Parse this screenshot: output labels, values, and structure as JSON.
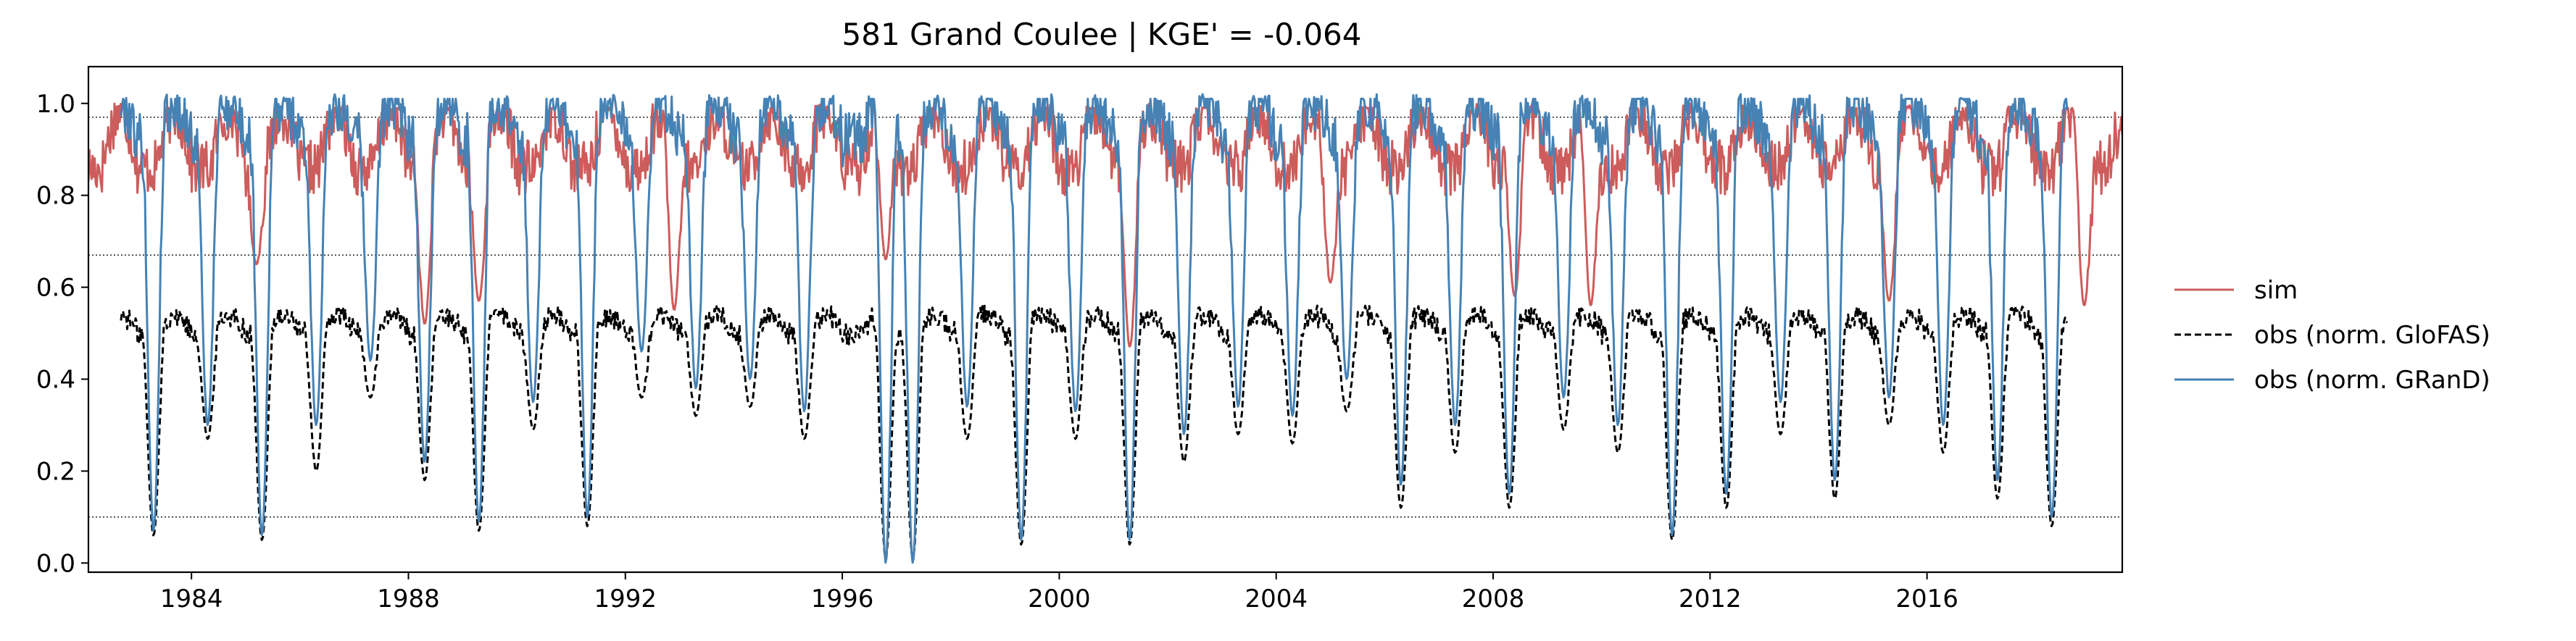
{
  "chart_data": {
    "type": "line",
    "title": "581  Grand Coulee | KGE' = -0.064",
    "xlabel": "",
    "ylabel": "",
    "xlim": [
      1982.1,
      2019.6
    ],
    "ylim": [
      -0.02,
      1.08
    ],
    "x_ticks": [
      1984,
      1988,
      1992,
      1996,
      2000,
      2004,
      2008,
      2012,
      2016
    ],
    "y_ticks": [
      0.0,
      0.2,
      0.4,
      0.6,
      0.8,
      1.0
    ],
    "y_tick_labels": [
      "0.0",
      "0.2",
      "0.4",
      "0.6",
      "0.8",
      "1.0"
    ],
    "reference_lines_y": [
      0.1,
      0.67,
      0.97
    ],
    "grid": false,
    "legend_position": "right, outside plot",
    "series": [
      {
        "name": "sim",
        "color": "#cd5c5c",
        "style": "solid",
        "x_start": 1982.1,
        "x_end": 2019.6,
        "baseline": 0.86,
        "annual_peak": 0.98,
        "drawdown_troughs": [
          {
            "year": 1985.2,
            "y": 0.65
          },
          {
            "year": 1988.3,
            "y": 0.52
          },
          {
            "year": 1989.3,
            "y": 0.57
          },
          {
            "year": 1992.9,
            "y": 0.55
          },
          {
            "year": 1996.8,
            "y": 0.66
          },
          {
            "year": 2001.3,
            "y": 0.47
          },
          {
            "year": 2005.0,
            "y": 0.61
          },
          {
            "year": 2008.4,
            "y": 0.58
          },
          {
            "year": 2009.8,
            "y": 0.56
          },
          {
            "year": 2015.3,
            "y": 0.57
          },
          {
            "year": 2018.9,
            "y": 0.56
          }
        ]
      },
      {
        "name": "obs (norm. GloFAS)",
        "color": "#000000",
        "style": "dashed",
        "x_start": 1982.7,
        "x_end": 2018.6,
        "baseline": 0.5,
        "annual_peak": 0.54,
        "drawdown_troughs": [
          {
            "year": 1983.3,
            "y": 0.06
          },
          {
            "year": 1984.3,
            "y": 0.27
          },
          {
            "year": 1985.3,
            "y": 0.05
          },
          {
            "year": 1986.3,
            "y": 0.2
          },
          {
            "year": 1987.3,
            "y": 0.36
          },
          {
            "year": 1988.3,
            "y": 0.18
          },
          {
            "year": 1989.3,
            "y": 0.07
          },
          {
            "year": 1990.3,
            "y": 0.29
          },
          {
            "year": 1991.3,
            "y": 0.08
          },
          {
            "year": 1992.3,
            "y": 0.36
          },
          {
            "year": 1993.3,
            "y": 0.32
          },
          {
            "year": 1994.3,
            "y": 0.34
          },
          {
            "year": 1995.3,
            "y": 0.27
          },
          {
            "year": 1996.8,
            "y": 0.01
          },
          {
            "year": 1997.3,
            "y": 0.01
          },
          {
            "year": 1998.3,
            "y": 0.27
          },
          {
            "year": 1999.3,
            "y": 0.04
          },
          {
            "year": 2000.3,
            "y": 0.27
          },
          {
            "year": 2001.3,
            "y": 0.04
          },
          {
            "year": 2002.3,
            "y": 0.22
          },
          {
            "year": 2003.3,
            "y": 0.28
          },
          {
            "year": 2004.3,
            "y": 0.26
          },
          {
            "year": 2005.3,
            "y": 0.33
          },
          {
            "year": 2006.3,
            "y": 0.12
          },
          {
            "year": 2007.3,
            "y": 0.24
          },
          {
            "year": 2008.3,
            "y": 0.12
          },
          {
            "year": 2009.3,
            "y": 0.29
          },
          {
            "year": 2010.3,
            "y": 0.24
          },
          {
            "year": 2011.3,
            "y": 0.05
          },
          {
            "year": 2012.3,
            "y": 0.12
          },
          {
            "year": 2013.3,
            "y": 0.28
          },
          {
            "year": 2014.3,
            "y": 0.14
          },
          {
            "year": 2015.3,
            "y": 0.3
          },
          {
            "year": 2016.3,
            "y": 0.24
          },
          {
            "year": 2017.3,
            "y": 0.14
          },
          {
            "year": 2018.3,
            "y": 0.08
          }
        ]
      },
      {
        "name": "obs (norm. GRanD)",
        "color": "#4682b4",
        "style": "solid",
        "x_start": 1982.7,
        "x_end": 2018.6,
        "baseline": 0.92,
        "annual_peak": 1.0,
        "drawdown_troughs": [
          {
            "year": 1983.3,
            "y": 0.07
          },
          {
            "year": 1984.3,
            "y": 0.3
          },
          {
            "year": 1985.3,
            "y": 0.06
          },
          {
            "year": 1986.3,
            "y": 0.3
          },
          {
            "year": 1987.3,
            "y": 0.44
          },
          {
            "year": 1988.3,
            "y": 0.22
          },
          {
            "year": 1989.3,
            "y": 0.09
          },
          {
            "year": 1990.3,
            "y": 0.35
          },
          {
            "year": 1991.3,
            "y": 0.1
          },
          {
            "year": 1992.3,
            "y": 0.46
          },
          {
            "year": 1993.3,
            "y": 0.38
          },
          {
            "year": 1994.3,
            "y": 0.4
          },
          {
            "year": 1995.3,
            "y": 0.33
          },
          {
            "year": 1996.8,
            "y": 0.0
          },
          {
            "year": 1997.3,
            "y": 0.0
          },
          {
            "year": 1998.3,
            "y": 0.34
          },
          {
            "year": 1999.3,
            "y": 0.05
          },
          {
            "year": 2000.3,
            "y": 0.33
          },
          {
            "year": 2001.3,
            "y": 0.05
          },
          {
            "year": 2002.3,
            "y": 0.28
          },
          {
            "year": 2003.3,
            "y": 0.34
          },
          {
            "year": 2004.3,
            "y": 0.32
          },
          {
            "year": 2005.3,
            "y": 0.4
          },
          {
            "year": 2006.3,
            "y": 0.17
          },
          {
            "year": 2007.3,
            "y": 0.3
          },
          {
            "year": 2008.3,
            "y": 0.15
          },
          {
            "year": 2009.3,
            "y": 0.36
          },
          {
            "year": 2010.3,
            "y": 0.3
          },
          {
            "year": 2011.3,
            "y": 0.06
          },
          {
            "year": 2012.3,
            "y": 0.15
          },
          {
            "year": 2013.3,
            "y": 0.35
          },
          {
            "year": 2014.3,
            "y": 0.18
          },
          {
            "year": 2015.3,
            "y": 0.36
          },
          {
            "year": 2016.3,
            "y": 0.3
          },
          {
            "year": 2017.3,
            "y": 0.18
          },
          {
            "year": 2018.3,
            "y": 0.1
          }
        ]
      }
    ]
  }
}
